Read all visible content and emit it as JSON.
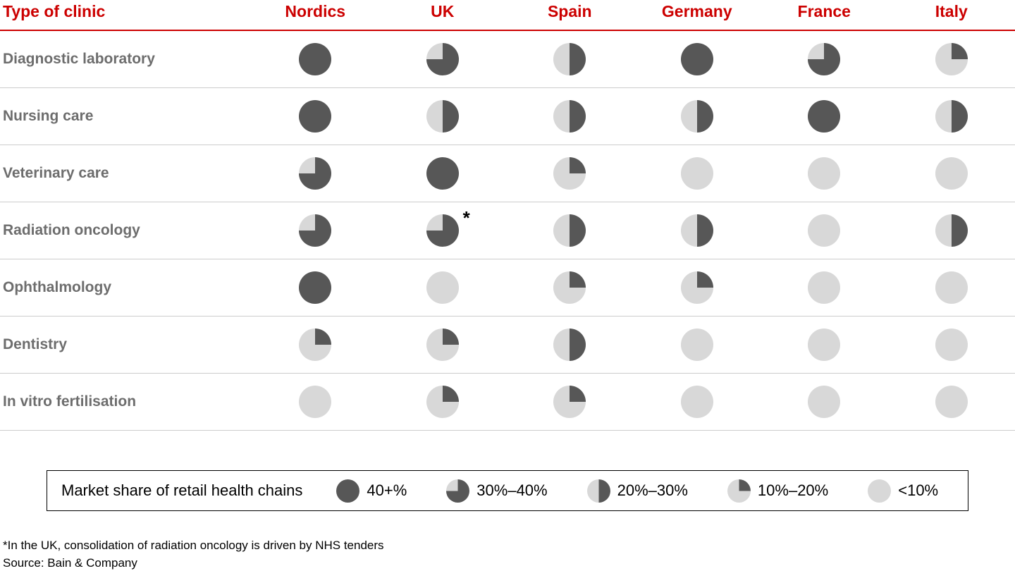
{
  "header": {
    "corner_label": "Type of clinic"
  },
  "chart_data": {
    "type": "table",
    "title": "Market share of retail health chains",
    "columns": [
      "Nordics",
      "UK",
      "Spain",
      "Germany",
      "France",
      "Italy"
    ],
    "rows": [
      {
        "label": "Diagnostic laboratory",
        "values": [
          "40+%",
          "30%–40%",
          "20%–30%",
          "40+%",
          "30%–40%",
          "10%–20%"
        ]
      },
      {
        "label": "Nursing care",
        "values": [
          "40+%",
          "20%–30%",
          "20%–30%",
          "20%–30%",
          "40+%",
          "20%–30%"
        ]
      },
      {
        "label": "Veterinary care",
        "values": [
          "30%–40%",
          "40+%",
          "10%–20%",
          "<10%",
          "<10%",
          "<10%"
        ]
      },
      {
        "label": "Radiation oncology",
        "values": [
          "30%–40%",
          "30%–40%",
          "20%–30%",
          "20%–30%",
          "<10%",
          "20%–30%"
        ]
      },
      {
        "label": "Ophthalmology",
        "values": [
          "40+%",
          "<10%",
          "10%–20%",
          "10%–20%",
          "<10%",
          "<10%"
        ]
      },
      {
        "label": "Dentistry",
        "values": [
          "10%–20%",
          "10%–20%",
          "20%–30%",
          "<10%",
          "<10%",
          "<10%"
        ]
      },
      {
        "label": "In vitro fertilisation",
        "values": [
          "<10%",
          "10%–20%",
          "10%–20%",
          "<10%",
          "<10%",
          "<10%"
        ]
      }
    ],
    "value_encoding": {
      "40+%": 1,
      "30%–40%": 0.75,
      "20%–30%": 0.5,
      "10%–20%": 0.25,
      "<10%": 0
    },
    "annotation": {
      "row": "Radiation oncology",
      "column": "UK",
      "marker": "*"
    }
  },
  "legend": {
    "title": "Market share of retail health chains",
    "items": [
      {
        "label": "40+%"
      },
      {
        "label": "30%–40%"
      },
      {
        "label": "20%–30%"
      },
      {
        "label": "10%–20%"
      },
      {
        "label": "<10%"
      }
    ]
  },
  "footnotes": {
    "note": "*In the UK, consolidation of radiation oncology is driven by NHS tenders",
    "source": "Source: Bain & Company"
  },
  "colors": {
    "accent_red": "#cc0000",
    "ball_dark": "#575757",
    "ball_light": "#d8d8d8",
    "row_label_gray": "#6d6d6d",
    "divider_gray": "#cccccc"
  }
}
